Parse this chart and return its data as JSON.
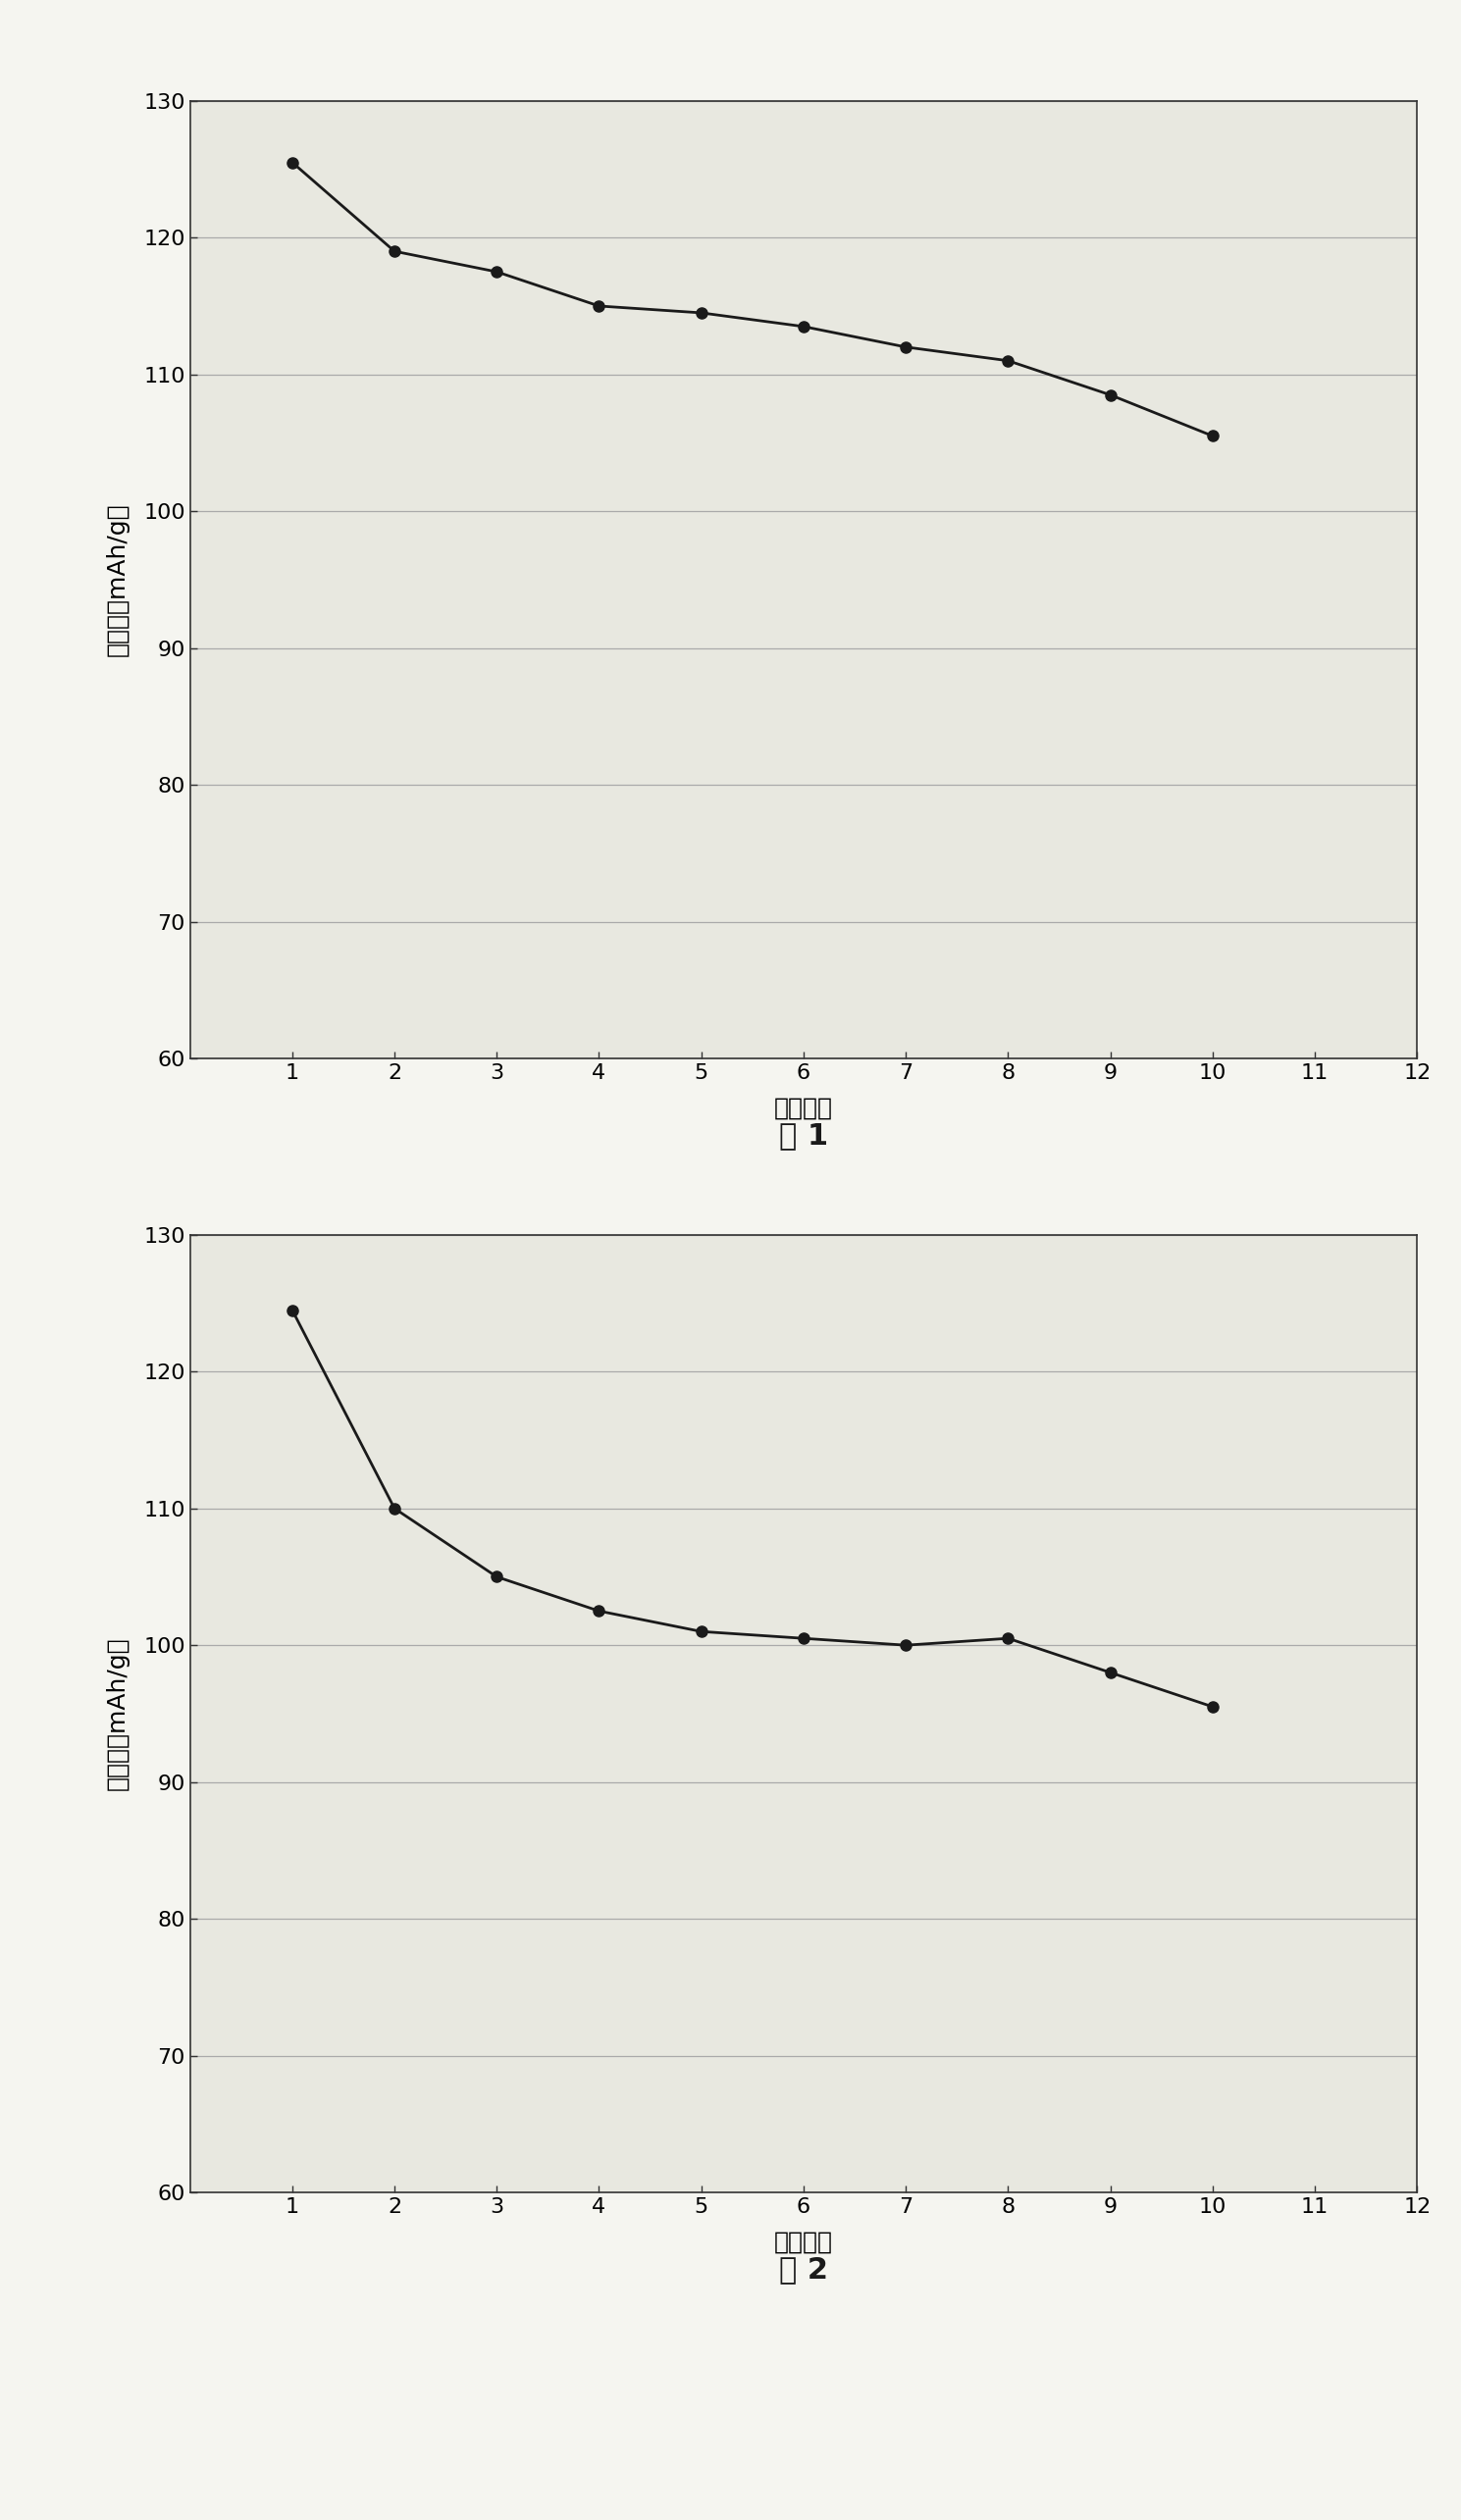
{
  "chart1": {
    "x": [
      1,
      2,
      3,
      4,
      5,
      6,
      7,
      8,
      9,
      10
    ],
    "y": [
      125.5,
      119.0,
      117.5,
      115.0,
      114.5,
      113.5,
      112.0,
      111.0,
      108.5,
      105.5
    ],
    "xlabel": "循环次数",
    "ylabel": "比容量（mAh/g）",
    "caption": "图 1",
    "xlim": [
      0,
      12
    ],
    "ylim": [
      60,
      130
    ],
    "xticks": [
      1,
      2,
      3,
      4,
      5,
      6,
      7,
      8,
      9,
      10,
      11,
      12
    ],
    "yticks": [
      60,
      70,
      80,
      90,
      100,
      110,
      120,
      130
    ]
  },
  "chart2": {
    "x": [
      1,
      2,
      3,
      4,
      5,
      6,
      7,
      8,
      9,
      10
    ],
    "y": [
      124.5,
      110.0,
      105.0,
      102.5,
      101.0,
      100.5,
      100.0,
      100.5,
      98.0,
      95.5
    ],
    "xlabel": "循环次数",
    "ylabel": "比容量（mAh/g）",
    "caption": "图 2",
    "xlim": [
      0,
      12
    ],
    "ylim": [
      60,
      130
    ],
    "xticks": [
      1,
      2,
      3,
      4,
      5,
      6,
      7,
      8,
      9,
      10,
      11,
      12
    ],
    "yticks": [
      60,
      70,
      80,
      90,
      100,
      110,
      120,
      130
    ]
  },
  "line_color": "#1a1a1a",
  "marker_color": "#1a1a1a",
  "marker_style": "o",
  "marker_size": 8,
  "line_width": 2.0,
  "background_color": "#f5f5f0",
  "plot_bg_color": "#e8e8e0",
  "grid_color": "#aaaaaa",
  "axis_label_fontsize": 18,
  "tick_fontsize": 16,
  "caption_fontsize": 22
}
